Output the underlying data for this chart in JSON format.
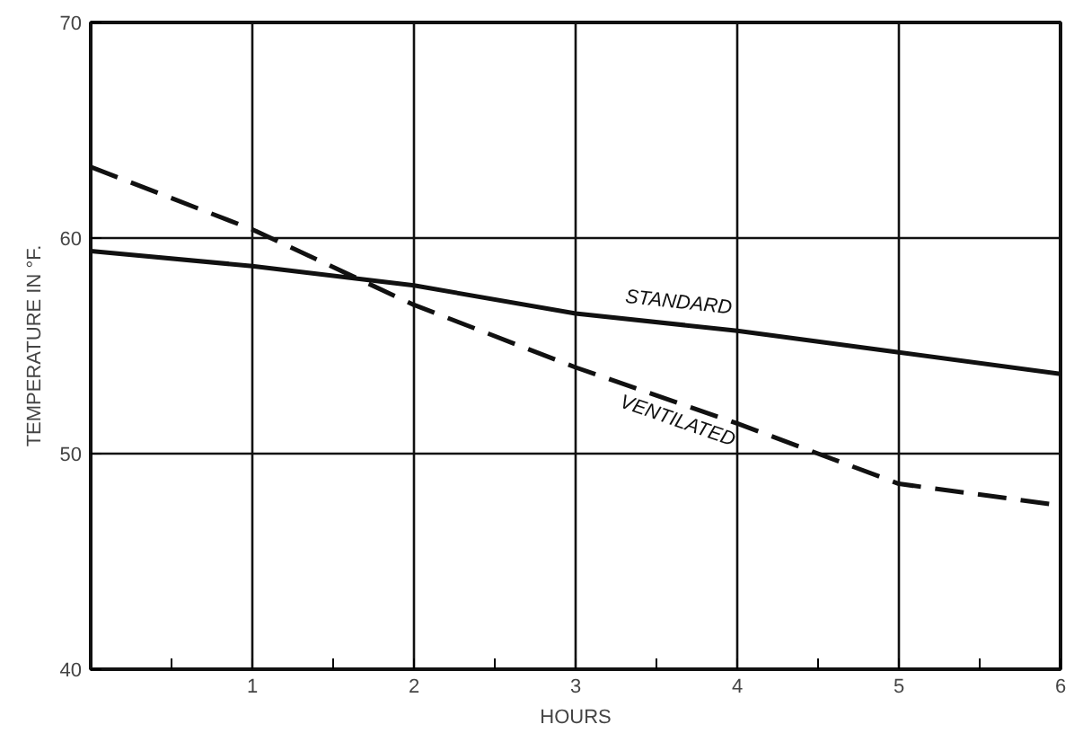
{
  "chart_data": {
    "type": "line",
    "xlabel": "HOURS",
    "ylabel": "TEMPERATURE IN °F.",
    "x": [
      0,
      1,
      2,
      3,
      4,
      5,
      6
    ],
    "series": [
      {
        "name": "STANDARD",
        "color": "#111111",
        "line_style": "solid",
        "values": [
          59.4,
          58.7,
          57.8,
          56.5,
          55.7,
          54.7,
          53.7
        ]
      },
      {
        "name": "VENTILATED",
        "color": "#111111",
        "line_style": "dashed",
        "values": [
          63.3,
          60.4,
          56.9,
          54.0,
          51.4,
          48.6,
          47.6
        ]
      }
    ],
    "xlim": [
      0,
      6
    ],
    "ylim": [
      40,
      70
    ],
    "xticks": [
      {
        "value": 0.5,
        "label": null
      },
      1,
      {
        "value": 1.5,
        "label": null
      },
      2,
      {
        "value": 2.5,
        "label": null
      },
      3,
      {
        "value": 3.5,
        "label": null
      },
      4,
      {
        "value": 4.5,
        "label": null
      },
      5,
      {
        "value": 5.5,
        "label": null
      },
      6
    ],
    "yticks": [
      40,
      50,
      60,
      70
    ],
    "grid": true,
    "marker": "none"
  }
}
